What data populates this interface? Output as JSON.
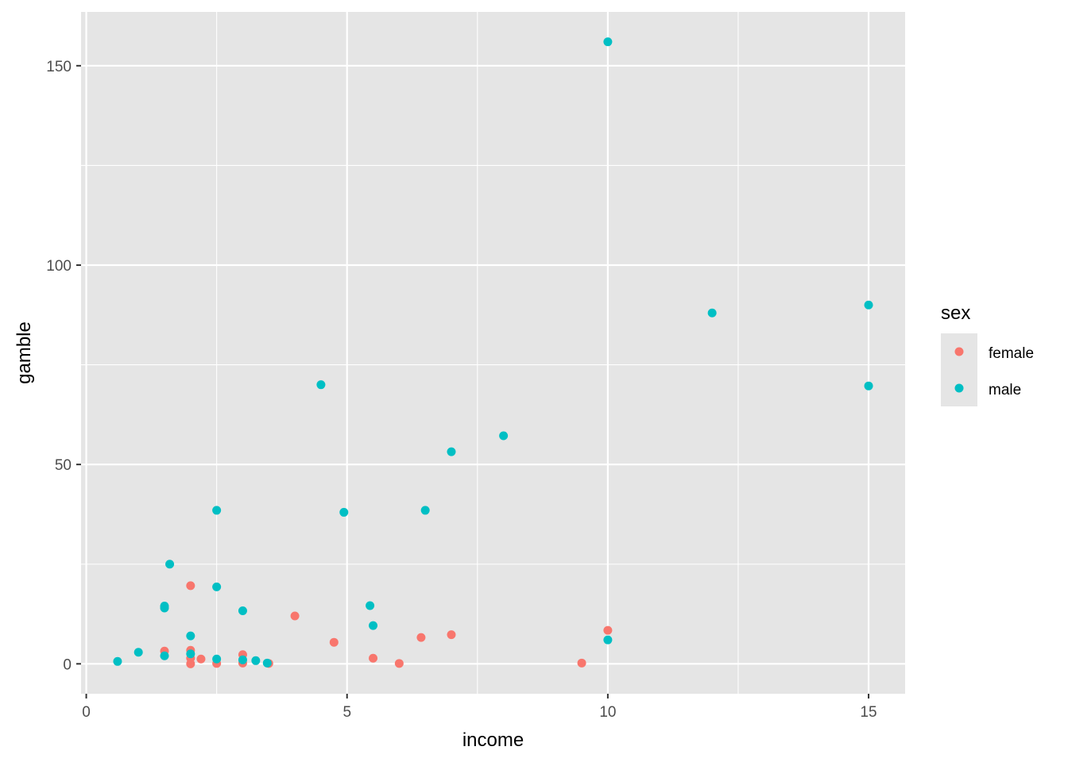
{
  "chart_data": {
    "type": "scatter",
    "xlabel": "income",
    "ylabel": "gamble",
    "xlim": [
      -0.1,
      15.7
    ],
    "ylim": [
      -7.5,
      163.5
    ],
    "x_ticks": [
      0,
      5,
      10,
      15
    ],
    "y_ticks": [
      0,
      50,
      100,
      150
    ],
    "x_tick_labels": [
      "0",
      "5",
      "10",
      "15"
    ],
    "y_tick_labels": [
      "0",
      "50",
      "100",
      "150"
    ],
    "grid": true,
    "panel_background": "#e5e5e5",
    "legend": {
      "title": "sex",
      "placement": "right",
      "entries": [
        "female",
        "male"
      ]
    },
    "series": [
      {
        "name": "female",
        "color": "#f8766d",
        "points": [
          [
            1.5,
            3.2
          ],
          [
            2.0,
            19.6
          ],
          [
            2.0,
            3.4
          ],
          [
            2.0,
            1.4
          ],
          [
            2.0,
            0.0
          ],
          [
            2.2,
            1.2
          ],
          [
            2.5,
            0.1
          ],
          [
            3.0,
            2.3
          ],
          [
            3.0,
            0.2
          ],
          [
            3.5,
            0.1
          ],
          [
            4.0,
            12.0
          ],
          [
            4.75,
            5.4
          ],
          [
            5.5,
            1.4
          ],
          [
            6.0,
            0.1
          ],
          [
            6.42,
            6.6
          ],
          [
            7.0,
            7.3
          ],
          [
            9.5,
            0.2
          ],
          [
            10.0,
            8.4
          ]
        ]
      },
      {
        "name": "male",
        "color": "#00bfc4",
        "points": [
          [
            0.6,
            0.6
          ],
          [
            1.0,
            2.9
          ],
          [
            1.5,
            14.5
          ],
          [
            1.5,
            14.0
          ],
          [
            1.5,
            2.0
          ],
          [
            1.6,
            25.0
          ],
          [
            2.0,
            7.0
          ],
          [
            2.0,
            2.5
          ],
          [
            2.5,
            38.5
          ],
          [
            2.5,
            19.3
          ],
          [
            2.5,
            1.2
          ],
          [
            3.0,
            13.3
          ],
          [
            3.0,
            1.0
          ],
          [
            3.25,
            0.8
          ],
          [
            3.47,
            0.2
          ],
          [
            4.5,
            70.0
          ],
          [
            4.94,
            38.0
          ],
          [
            5.44,
            14.6
          ],
          [
            5.5,
            9.6
          ],
          [
            6.5,
            38.5
          ],
          [
            7.0,
            53.2
          ],
          [
            8.0,
            57.2
          ],
          [
            10.0,
            156.0
          ],
          [
            10.0,
            6.0
          ],
          [
            12.0,
            88.0
          ],
          [
            15.0,
            90.0
          ],
          [
            15.0,
            69.7
          ]
        ]
      }
    ]
  }
}
